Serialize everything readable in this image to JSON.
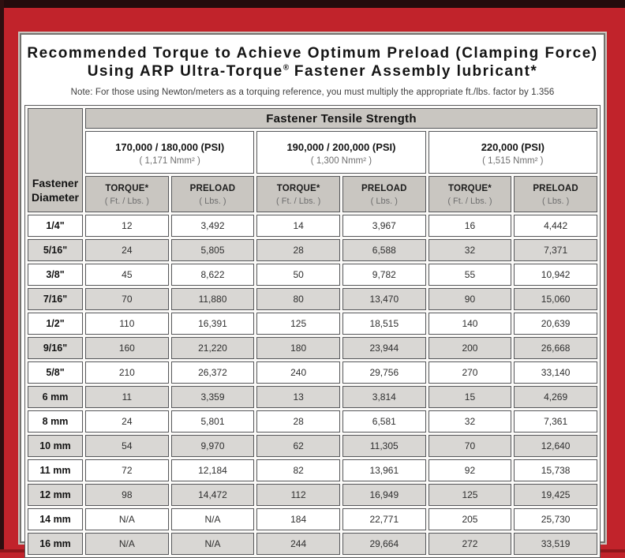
{
  "title": {
    "line1": "Recommended Torque to Achieve Optimum Preload (Clamping Force)",
    "line2_pre": "Using ARP Ultra-Torque",
    "line2_sup": "®",
    "line2_post": " Fastener Assembly lubricant*"
  },
  "note": "Note: For those using Newton/meters as a torquing reference, you must multiply the appropriate ft./lbs. factor by 1.356",
  "table": {
    "tensile_strength_header": "Fastener Tensile Strength",
    "diameter_header_line1": "Fastener",
    "diameter_header_line2": "Diameter",
    "strength_groups": [
      {
        "psi": "170,000 / 180,000 (PSI)",
        "nmm": "( 1,171 Nmm² )"
      },
      {
        "psi": "190,000 / 200,000 (PSI)",
        "nmm": "( 1,300 Nmm² )"
      },
      {
        "psi": "220,000 (PSI)",
        "nmm": "( 1,515 Nmm² )"
      }
    ],
    "col_headers": [
      {
        "label": "TORQUE*",
        "sub": "( Ft. / Lbs. )"
      },
      {
        "label": "PRELOAD",
        "sub": "( Lbs. )"
      },
      {
        "label": "TORQUE*",
        "sub": "( Ft. / Lbs. )"
      },
      {
        "label": "PRELOAD",
        "sub": "( Lbs. )"
      },
      {
        "label": "TORQUE*",
        "sub": "( Ft. / Lbs. )"
      },
      {
        "label": "PRELOAD",
        "sub": "( Lbs. )"
      }
    ],
    "rows": [
      {
        "diameter": "1/4\"",
        "values": [
          "12",
          "3,492",
          "14",
          "3,967",
          "16",
          "4,442"
        ]
      },
      {
        "diameter": "5/16\"",
        "values": [
          "24",
          "5,805",
          "28",
          "6,588",
          "32",
          "7,371"
        ]
      },
      {
        "diameter": "3/8\"",
        "values": [
          "45",
          "8,622",
          "50",
          "9,782",
          "55",
          "10,942"
        ]
      },
      {
        "diameter": "7/16\"",
        "values": [
          "70",
          "11,880",
          "80",
          "13,470",
          "90",
          "15,060"
        ]
      },
      {
        "diameter": "1/2\"",
        "values": [
          "110",
          "16,391",
          "125",
          "18,515",
          "140",
          "20,639"
        ]
      },
      {
        "diameter": "9/16\"",
        "values": [
          "160",
          "21,220",
          "180",
          "23,944",
          "200",
          "26,668"
        ]
      },
      {
        "diameter": "5/8\"",
        "values": [
          "210",
          "26,372",
          "240",
          "29,756",
          "270",
          "33,140"
        ]
      },
      {
        "diameter": "6 mm",
        "values": [
          "11",
          "3,359",
          "13",
          "3,814",
          "15",
          "4,269"
        ]
      },
      {
        "diameter": "8 mm",
        "values": [
          "24",
          "5,801",
          "28",
          "6,581",
          "32",
          "7,361"
        ]
      },
      {
        "diameter": "10 mm",
        "values": [
          "54",
          "9,970",
          "62",
          "11,305",
          "70",
          "12,640"
        ]
      },
      {
        "diameter": "11 mm",
        "values": [
          "72",
          "12,184",
          "82",
          "13,961",
          "92",
          "15,738"
        ]
      },
      {
        "diameter": "12 mm",
        "values": [
          "98",
          "14,472",
          "112",
          "16,949",
          "125",
          "19,425"
        ]
      },
      {
        "diameter": "14 mm",
        "values": [
          "N/A",
          "N/A",
          "184",
          "22,771",
          "205",
          "25,730"
        ]
      },
      {
        "diameter": "16 mm",
        "values": [
          "N/A",
          "N/A",
          "244",
          "29,664",
          "272",
          "33,519"
        ]
      }
    ]
  },
  "colors": {
    "frame_red": "#c1232b",
    "dark_strip": "#230b0c",
    "header_gray": "#c9c6c1",
    "row_stripe": "#d9d7d4",
    "cell_border": "#56575a"
  }
}
